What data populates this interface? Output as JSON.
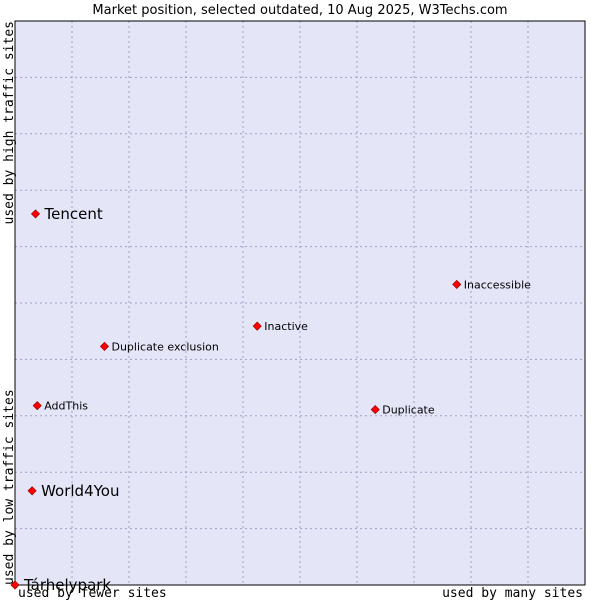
{
  "chart_data": {
    "type": "scatter",
    "title": "Market position, selected outdated, 10 Aug 2025, W3Techs.com",
    "xlabel_left": "used by fewer sites",
    "xlabel_right": "used by many sites",
    "ylabel_bottom": "used by low traffic sites",
    "ylabel_top": "used by high traffic sites",
    "xlim": [
      0,
      100
    ],
    "ylim": [
      0,
      100
    ],
    "grid": true,
    "colors": {
      "plot_bg": "#e4e6f8",
      "grid": "#a0a0c8",
      "marker": "#ff0000",
      "marker_stroke": "#aa0000",
      "frame": "#000000"
    },
    "points": [
      {
        "label": "Tencent",
        "x": 3.6,
        "y": 65.8,
        "size": "large"
      },
      {
        "label": "Inaccessible",
        "x": 77.5,
        "y": 53.3,
        "size": "small"
      },
      {
        "label": "Inactive",
        "x": 42.5,
        "y": 45.9,
        "size": "small"
      },
      {
        "label": "Duplicate exclusion",
        "x": 15.7,
        "y": 42.3,
        "size": "small"
      },
      {
        "label": "AddThis",
        "x": 3.9,
        "y": 31.8,
        "size": "small"
      },
      {
        "label": "Duplicate",
        "x": 63.2,
        "y": 31.1,
        "size": "small"
      },
      {
        "label": "World4You",
        "x": 3.0,
        "y": 16.7,
        "size": "large"
      },
      {
        "label": "Tárhelypark",
        "x": 0.0,
        "y": 0.0,
        "size": "large"
      }
    ]
  }
}
